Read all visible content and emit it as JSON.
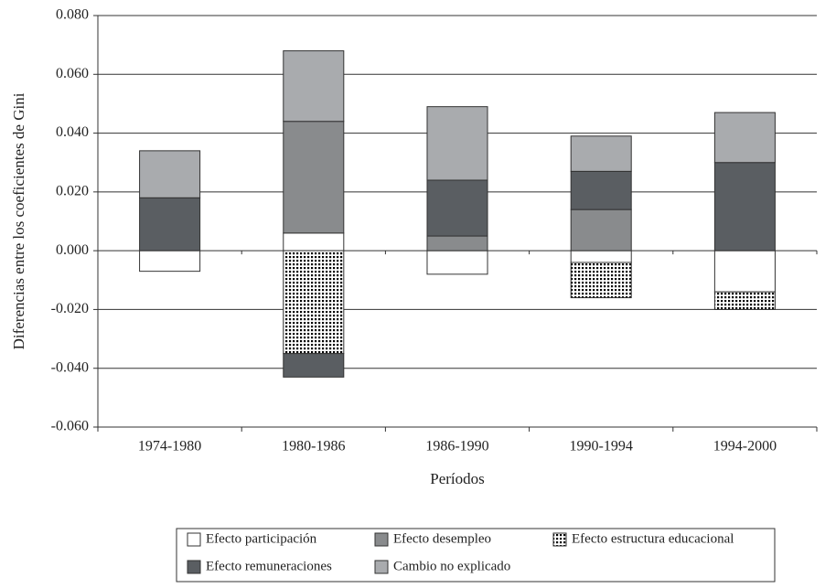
{
  "chart_data": {
    "type": "stacked-bar",
    "x_label": "Períodos",
    "y_label": "Diferencias entre los coeficientes de Gini",
    "categories": [
      "1974-1980",
      "1980-1986",
      "1986-1990",
      "1990-1994",
      "1994-2000"
    ],
    "series": [
      {
        "name": "Efecto participación",
        "color": "#ffffff",
        "values": [
          -0.007,
          0.006,
          -0.008,
          -0.004,
          -0.014
        ]
      },
      {
        "name": "Efecto desempleo",
        "color": "#898b8d",
        "values": [
          0,
          0.038,
          0.005,
          0.014,
          0
        ]
      },
      {
        "name": "Efecto estructura educacional",
        "color": "#000000",
        "pattern": "dots",
        "values": [
          0,
          -0.035,
          0,
          -0.012,
          -0.006
        ]
      },
      {
        "name": "Efecto remuneraciones",
        "color": "#5a5e62",
        "values": [
          0.018,
          -0.008,
          0.019,
          0.013,
          0.03
        ]
      },
      {
        "name": "Cambio no explicado",
        "color": "#a9abae",
        "values": [
          0.016,
          0.024,
          0.025,
          0.012,
          0.017
        ]
      }
    ],
    "ylim": [
      -0.06,
      0.08
    ],
    "yticks": [
      {
        "value": -0.06,
        "label": "-0.060"
      },
      {
        "value": -0.04,
        "label": "-0.040"
      },
      {
        "value": -0.02,
        "label": "-0.020"
      },
      {
        "value": 0,
        "label": "0.000"
      },
      {
        "value": 0.02,
        "label": "0.020"
      },
      {
        "value": 0.04,
        "label": "0.040"
      },
      {
        "value": 0.06,
        "label": "0.060"
      },
      {
        "value": 0.08,
        "label": "0.080"
      }
    ],
    "grid": true
  }
}
